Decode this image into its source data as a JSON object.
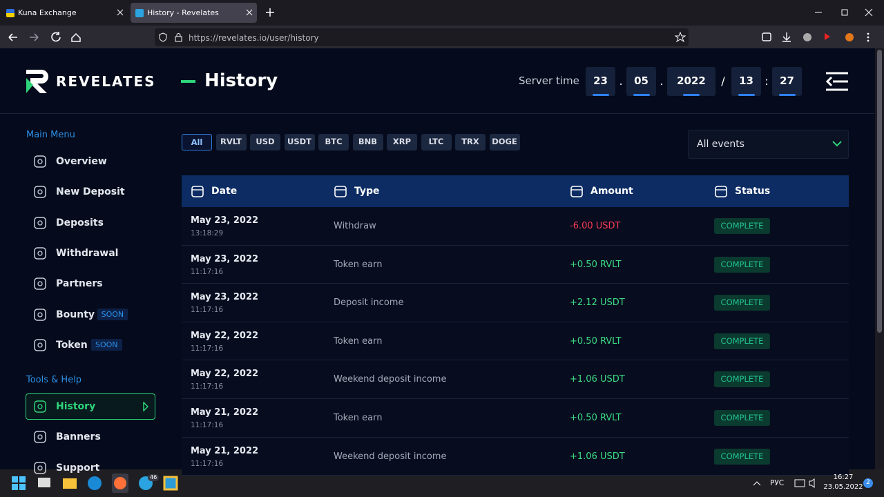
{
  "browser": {
    "tabs": [
      "Kuna Exchange",
      "History - Revelates"
    ],
    "active_tab": 1,
    "url": "https://revelates.io/user/history"
  },
  "header": {
    "logo": "REVELATES",
    "title": "History",
    "server_time_label": "Server time",
    "server_time": [
      "23",
      "05",
      "2022",
      "13",
      "27"
    ],
    "separators": [
      ".",
      ".",
      "/",
      ":"
    ]
  },
  "sidebar": {
    "sections": [
      {
        "title": "Main Menu",
        "items": [
          {
            "label": "Overview"
          },
          {
            "label": "New Deposit"
          },
          {
            "label": "Deposits"
          },
          {
            "label": "Withdrawal"
          },
          {
            "label": "Partners"
          },
          {
            "label": "Bounty",
            "badge": "SOON"
          },
          {
            "label": "Token",
            "badge": "SOON"
          }
        ]
      },
      {
        "title": "Tools & Help",
        "items": [
          {
            "label": "History",
            "active": true
          },
          {
            "label": "Banners"
          },
          {
            "label": "Support"
          }
        ]
      }
    ]
  },
  "filters": {
    "options": [
      "All",
      "RVLT",
      "USD",
      "USDT",
      "BTC",
      "BNB",
      "XRP",
      "LTC",
      "TRX",
      "DOGE"
    ],
    "selected": 0
  },
  "event_filter": "All events",
  "table": {
    "columns": [
      "Date",
      "Type",
      "Amount",
      "Status"
    ],
    "rows": [
      {
        "date": "May 23, 2022",
        "time": "13:18:29",
        "type": "Withdraw",
        "amount": "-6.00 USDT",
        "amount_color": "#ff3b55",
        "status": "COMPLETE"
      },
      {
        "date": "May 23, 2022",
        "time": "11:17:16",
        "type": "Token earn",
        "amount": "+0.50 RVLT",
        "amount_color": "#3ddc84",
        "status": "COMPLETE"
      },
      {
        "date": "May 23, 2022",
        "time": "11:17:16",
        "type": "Deposit income",
        "amount": "+2.12 USDT",
        "amount_color": "#3ddc84",
        "status": "COMPLETE"
      },
      {
        "date": "May 22, 2022",
        "time": "11:17:16",
        "type": "Token earn",
        "amount": "+0.50 RVLT",
        "amount_color": "#3ddc84",
        "status": "COMPLETE"
      },
      {
        "date": "May 22, 2022",
        "time": "11:17:16",
        "type": "Weekend deposit income",
        "amount": "+1.06 USDT",
        "amount_color": "#3ddc84",
        "status": "COMPLETE"
      },
      {
        "date": "May 21, 2022",
        "time": "11:17:16",
        "type": "Token earn",
        "amount": "+0.50 RVLT",
        "amount_color": "#3ddc84",
        "status": "COMPLETE"
      },
      {
        "date": "May 21, 2022",
        "time": "11:17:16",
        "type": "Weekend deposit income",
        "amount": "+1.06 USDT",
        "amount_color": "#3ddc84",
        "status": "COMPLETE"
      }
    ]
  },
  "taskbar": {
    "telegram_badge": "46",
    "language": "РУС",
    "time": "16:27",
    "date": "23.05.2022",
    "notifications": "2"
  }
}
